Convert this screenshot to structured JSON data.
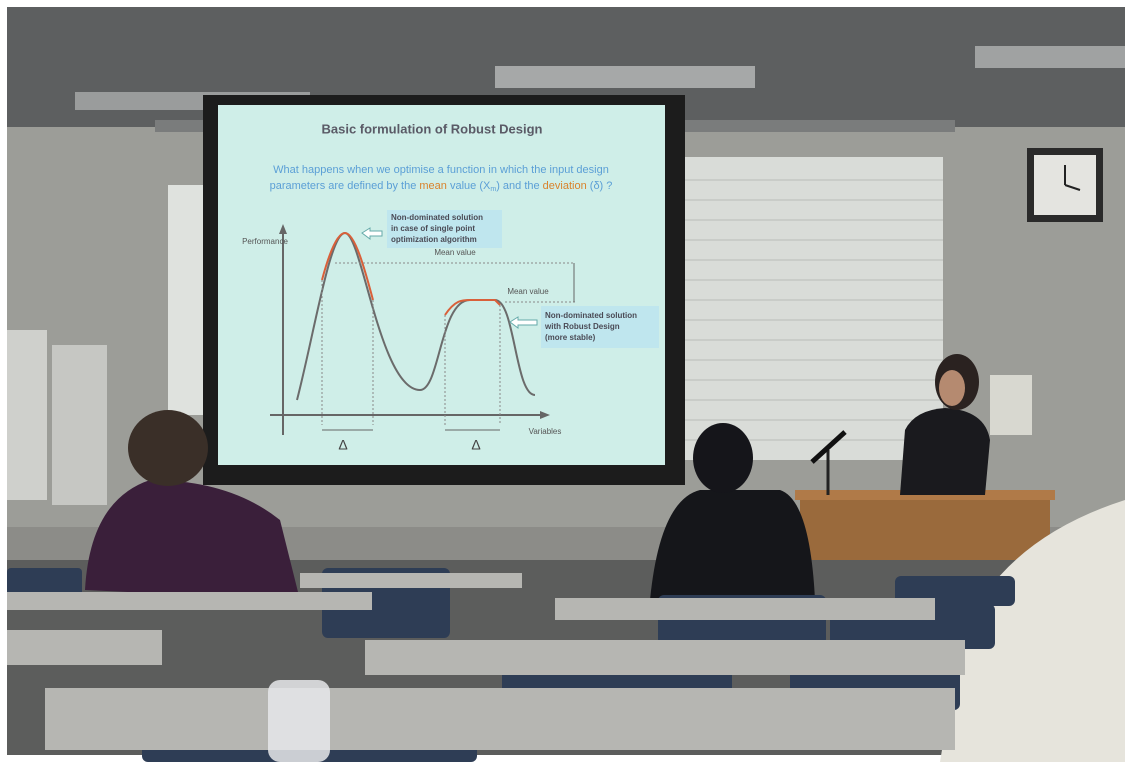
{
  "slide": {
    "title": "Basic formulation of Robust Design",
    "question": [
      [
        {
          "text": "What happens when we optimise a function in which the input design",
          "color": "#5b9fd6"
        }
      ],
      [
        {
          "text": "parameters are defined by the ",
          "color": "#5b9fd6"
        },
        {
          "text": "mean",
          "color": "#d9822b"
        },
        {
          "text": " value (X",
          "color": "#5b9fd6"
        },
        {
          "text": "m",
          "color": "#5b9fd6"
        },
        {
          "text": ") and the ",
          "color": "#5b9fd6"
        },
        {
          "text": "deviation",
          "color": "#d9822b"
        },
        {
          "text": " (δ) ?",
          "color": "#5b9fd6"
        }
      ]
    ],
    "y_axis_label": "Performance",
    "x_axis_label": "Variables",
    "peak_note": [
      "Non-dominated solution",
      "in case of single point",
      "optimization algorithm"
    ],
    "robust_note": [
      "Non-dominated solution",
      "with Robust Design",
      "(more stable)"
    ],
    "mean_value_top": "Mean value",
    "mean_value_side": "Mean value",
    "delta_left": "Δ",
    "delta_right": "Δ"
  }
}
